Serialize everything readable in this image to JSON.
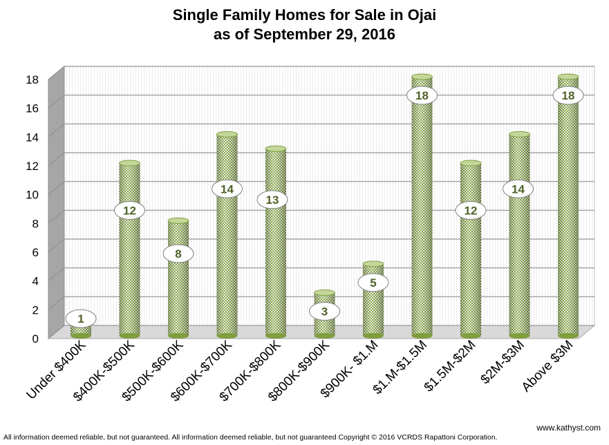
{
  "chart_data": {
    "type": "bar",
    "title_line1": "Single Family Homes for Sale in Ojai",
    "title_line2": "as of September 29, 2016",
    "categories": [
      "Under $400K",
      "$400K-$500K",
      "$500K-$600K",
      "$600K-$700K",
      "$700K-$800K",
      "$800K-$900K",
      "$900K- $1.M",
      "$1.M-$1.5M",
      "$1.5M-$2M",
      "$2M-$3M",
      "Above $3M"
    ],
    "values": [
      1,
      12,
      8,
      14,
      13,
      3,
      5,
      18,
      12,
      14,
      18
    ],
    "xlabel": "",
    "ylabel": "",
    "ylim": [
      0,
      18
    ],
    "yticks": [
      0,
      2,
      4,
      6,
      8,
      10,
      12,
      14,
      16,
      18
    ],
    "grid": true,
    "style": "3d-cylinder",
    "colors": {
      "bar": "#8aa84a",
      "bar_light": "#e6eed6",
      "label_text": "#4f6228",
      "side_wall": "#a6a6a6"
    }
  },
  "website": "www.kathyst.com",
  "footer": "All information deemed reliable, but not guaranteed. All information deemed reliable, but not guaranteed Copyright © 2016 VCRDS  Rapattoni Corporation."
}
